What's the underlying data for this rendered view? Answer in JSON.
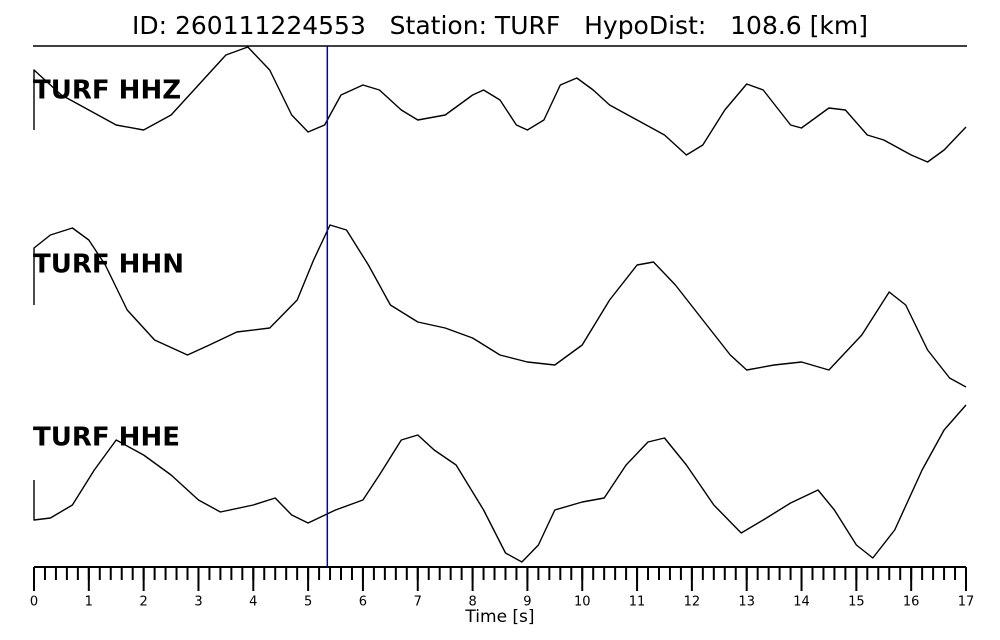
{
  "chart_data": {
    "type": "line",
    "title": "ID: 260111224553   Station: TURF   HypoDist:   108.6 [km]",
    "xlabel": "Time [s]",
    "xlim": [
      0,
      17
    ],
    "xticks": [
      0,
      1,
      2,
      3,
      4,
      5,
      6,
      7,
      8,
      9,
      10,
      11,
      12,
      13,
      14,
      15,
      16,
      17
    ],
    "xminor_step": 0.2,
    "pick_x": 5.35,
    "pick_color": "#0000cc",
    "label_color": "#4c9a00",
    "series": [
      {
        "name": "TURF HHZ",
        "color": "#000000",
        "ylim": [
          -60,
          60
        ],
        "x": [
          0,
          0,
          0.5,
          1,
          1.5,
          2,
          2.5,
          3,
          3.5,
          3.9,
          4.3,
          4.7,
          5,
          5.3,
          5.6,
          6,
          6.3,
          6.7,
          7,
          7.5,
          8,
          8.2,
          8.5,
          8.8,
          9,
          9.3,
          9.6,
          9.9,
          10.2,
          10.5,
          11,
          11.5,
          11.9,
          12.2,
          12.6,
          13,
          13.3,
          13.8,
          14,
          14.5,
          14.8,
          15.2,
          15.5,
          16,
          16.3,
          16.6,
          17
        ],
        "values": [
          -25,
          35,
          10,
          -5,
          -20,
          -25,
          -10,
          20,
          50,
          58,
          35,
          -10,
          -27,
          -20,
          10,
          20,
          15,
          -5,
          -15,
          -10,
          10,
          15,
          5,
          -20,
          -25,
          -15,
          20,
          27,
          15,
          0,
          -15,
          -30,
          -50,
          -40,
          -5,
          21,
          15,
          -20,
          -23,
          -3,
          -5,
          -30,
          -35,
          -50,
          -57,
          -45,
          -22
        ]
      },
      {
        "name": "TURF HHN",
        "color": "#000000",
        "ylim": [
          -90,
          90
        ],
        "x": [
          0,
          0,
          0.3,
          0.7,
          1,
          1.3,
          1.7,
          2.2,
          2.8,
          3.2,
          3.7,
          4.3,
          4.8,
          5.1,
          5.4,
          5.7,
          6.1,
          6.5,
          7,
          7.5,
          8,
          8.5,
          9,
          9.5,
          10,
          10.5,
          11,
          11.3,
          11.7,
          12.2,
          12.7,
          13,
          13.5,
          14,
          14.5,
          15.1,
          15.6,
          15.9,
          16.3,
          16.7,
          17
        ],
        "values": [
          0,
          57,
          70,
          77,
          65,
          40,
          -5,
          -35,
          -50,
          -40,
          -27,
          -23,
          5,
          45,
          80,
          75,
          40,
          0,
          -17,
          -23,
          -33,
          -50,
          -57,
          -60,
          -40,
          5,
          40,
          43,
          20,
          -15,
          -50,
          -65,
          -60,
          -57,
          -65,
          -30,
          13,
          0,
          -45,
          -73,
          -82
        ]
      },
      {
        "name": "TURF HHE",
        "color": "#000000",
        "ylim": [
          -90,
          90
        ],
        "x": [
          0,
          0,
          0.3,
          0.7,
          1.1,
          1.5,
          2,
          2.5,
          3,
          3.4,
          4,
          4.4,
          4.7,
          5,
          5.5,
          6,
          6.3,
          6.7,
          7,
          7.3,
          7.7,
          8.2,
          8.6,
          8.9,
          9.2,
          9.5,
          10,
          10.4,
          10.8,
          11.2,
          11.5,
          11.9,
          12.4,
          12.9,
          13.3,
          13.8,
          14.3,
          14.6,
          15,
          15.3,
          15.7,
          16.2,
          16.6,
          17
        ],
        "values": [
          5,
          -35,
          -33,
          -20,
          15,
          45,
          30,
          10,
          -15,
          -27,
          -20,
          -13,
          -30,
          -38,
          -25,
          -15,
          10,
          45,
          50,
          35,
          20,
          -25,
          -68,
          -77,
          -60,
          -25,
          -17,
          -13,
          20,
          43,
          47,
          20,
          -20,
          -48,
          -35,
          -18,
          -5,
          -25,
          -60,
          -73,
          -45,
          15,
          55,
          80
        ]
      }
    ]
  }
}
